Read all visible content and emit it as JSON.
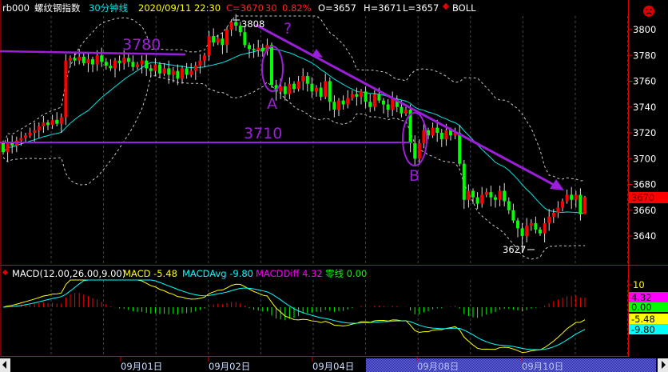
{
  "header": {
    "symbol": "rb000",
    "name": "螺纹钢指数",
    "period": "30分钟线",
    "datetime": "2020/09/11 22:30",
    "close": "C=3670",
    "change": "30",
    "change_pct": "0.82%",
    "open": "O=3657",
    "high": "H=3671",
    "low": "L=3657",
    "indicator": "BOLL",
    "status_icon": "sad-face-icon"
  },
  "macd_header": {
    "title": "MACD(12.00,26.00,9.00)",
    "macd": "MACD -5.48",
    "avg": "MACDAvg -9.80",
    "diff": "MACDDiff 4.32",
    "zero": "零线 0.00"
  },
  "macd_axis": {
    "tick": "10",
    "diff_label": "4.32",
    "zero_label": "0.00",
    "macd_label": "-5.48",
    "avg_label": "-9.80"
  },
  "price_axis": {
    "ticks": [
      "3800",
      "3780",
      "3760",
      "3740",
      "3720",
      "3700",
      "3680",
      "3660",
      "3640"
    ],
    "last_price": "3670"
  },
  "date_axis": [
    "09月01日",
    "09月02日",
    "09月04日",
    "09月08日",
    "09月10日"
  ],
  "annotations": {
    "level_high": "3780",
    "level_low": "3710",
    "point_a": "A",
    "point_b": "B",
    "question": "?",
    "max_label": "3808",
    "min_label": "3627"
  },
  "colors": {
    "up": "#ff0000",
    "down": "#00ff00",
    "boll_mid": "#00e5e5",
    "boll_band": "#c8c8c8",
    "macd": "#ffff00",
    "macd_avg": "#00ffff",
    "annotation": "#9b1fd8",
    "frame": "#e00000"
  },
  "chart_data": {
    "type": "candlestick",
    "indicator": "BOLL",
    "ylim": [
      3620,
      3815
    ],
    "yticks": [
      3640,
      3660,
      3680,
      3700,
      3720,
      3740,
      3760,
      3780,
      3800
    ],
    "grid": "vertical dotted",
    "last_bar": {
      "open": 3657,
      "high": 3671,
      "low": 3657,
      "close": 3670
    },
    "high_marker": 3808,
    "low_marker": 3627,
    "close": [
      3705,
      3712,
      3710,
      3714,
      3716,
      3718,
      3720,
      3722,
      3725,
      3728,
      3726,
      3730,
      3727,
      3732,
      3776,
      3778,
      3776,
      3779,
      3774,
      3777,
      3773,
      3780,
      3775,
      3772,
      3770,
      3776,
      3774,
      3778,
      3775,
      3771,
      3773,
      3776,
      3770,
      3768,
      3773,
      3766,
      3770,
      3765,
      3768,
      3762,
      3770,
      3765,
      3768,
      3772,
      3776,
      3780,
      3795,
      3790,
      3793,
      3788,
      3800,
      3806,
      3803,
      3798,
      3788,
      3785,
      3784,
      3786,
      3783,
      3788,
      3757,
      3752,
      3756,
      3750,
      3758,
      3754,
      3760,
      3764,
      3758,
      3752,
      3755,
      3748,
      3760,
      3744,
      3738,
      3745,
      3742,
      3747,
      3750,
      3748,
      3752,
      3744,
      3740,
      3750,
      3745,
      3742,
      3738,
      3746,
      3740,
      3735,
      3738,
      3712,
      3700,
      3712,
      3722,
      3718,
      3724,
      3720,
      3715,
      3722,
      3718,
      3720,
      3696,
      3668,
      3675,
      3670,
      3665,
      3672,
      3674,
      3670,
      3668,
      3675,
      3667,
      3660,
      3652,
      3646,
      3640,
      3648,
      3650,
      3645,
      3642,
      3650,
      3655,
      3658,
      3662,
      3667,
      3672,
      3668,
      3672,
      3657,
      3670
    ],
    "macd_params": [
      12,
      26,
      9
    ],
    "macd_ylim": [
      -20,
      12
    ],
    "macd_last": {
      "macd": -5.48,
      "avg": -9.8,
      "diff": 4.32,
      "zero": 0.0
    }
  }
}
